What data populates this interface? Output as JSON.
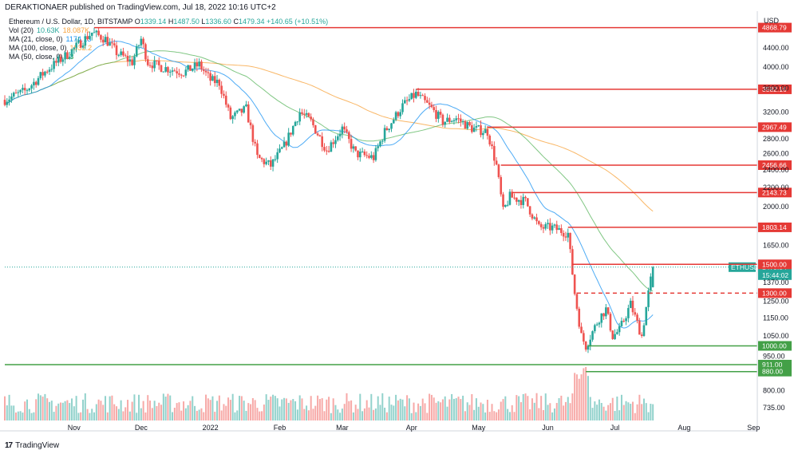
{
  "header": {
    "publisher": "DERAKTIONAER published on TradingView.com, Jul 18, 2022 10:16 UTC+2"
  },
  "legend": {
    "title_line": "Ethereum / U.S. Dollar, 1D, BITSTAMP",
    "ohlc": {
      "o_label": "O",
      "o": "1339.14",
      "h_label": "H",
      "h": "1487.50",
      "l_label": "L",
      "l": "1336.60",
      "c_label": "C",
      "c": "1479.34",
      "change": "+140.65 (+10.51%)"
    },
    "vol": {
      "label": "Vol (20)",
      "v1": "10.63K",
      "v2": "18.087K"
    },
    "ma21": {
      "label": "MA (21, close, 0)",
      "value": "1174.13"
    },
    "ma100": {
      "label": "MA (100, close, 0)",
      "value": "1932.2"
    },
    "ma50": {
      "label": "MA (50, close, 0)",
      "value": "13"
    }
  },
  "footer": {
    "logo_text": "TradingView",
    "logo_mark": "17"
  },
  "colors": {
    "up": "#26a69a",
    "down": "#ef5350",
    "ma21": "#2196f3",
    "ma50": "#4caf50",
    "ma100": "#f7a541",
    "resistance": "#e53935",
    "support": "#43a047",
    "ethusd_label": "#26a69a"
  },
  "chart_data": {
    "type": "candlestick",
    "symbol_label": "ETHUSD",
    "price_axis_unit": "USD",
    "y_scale": "log",
    "ylim": [
      690,
      5200
    ],
    "y_ticks": [
      735,
      800,
      880,
      950,
      1050,
      1150,
      1250,
      1370,
      1500,
      1650,
      1800,
      2000,
      2200,
      2400,
      2600,
      2800,
      3000,
      3200,
      3600,
      4000,
      4400,
      4800
    ],
    "y_tick_labels": [
      "735.00",
      "800.00",
      "",
      "950.00",
      "1050.00",
      "1150.00",
      "1250.00",
      "1370.00",
      "",
      "1650.00",
      "",
      "2000.00",
      "2200.00",
      "2400.00",
      "2600.00",
      "2800.00",
      "",
      "3200.00",
      "3600.00",
      "4000.00",
      "4400.00",
      ""
    ],
    "x_ticks": [
      "Nov",
      "Dec",
      "2022",
      "Feb",
      "Mar",
      "Apr",
      "May",
      "Jun",
      "Jul",
      "Aug",
      "Sep"
    ],
    "x_tick_dates": [
      "2021-11-01",
      "2021-12-01",
      "2022-01-01",
      "2022-02-01",
      "2022-03-01",
      "2022-04-01",
      "2022-05-01",
      "2022-06-01",
      "2022-07-01",
      "2022-08-01",
      "2022-09-01"
    ],
    "x_range": [
      "2021-10-01",
      "2022-09-02"
    ],
    "current": {
      "price": 1479.34,
      "price_label": "1479.34",
      "countdown": "15:44:02",
      "date": "2022-07-18"
    },
    "price_levels": [
      {
        "price": 4868.79,
        "label": "4868.79",
        "kind": "resistance",
        "from": "2021-11-10",
        "style": "solid"
      },
      {
        "price": 3582.16,
        "label": "3582.16",
        "kind": "resistance",
        "from": "2022-04-03",
        "style": "solid"
      },
      {
        "price": 2967.49,
        "label": "2967.49",
        "kind": "resistance",
        "from": "2022-05-05",
        "style": "solid"
      },
      {
        "price": 2456.66,
        "label": "2456.66",
        "kind": "resistance",
        "from": "2022-05-11",
        "style": "solid"
      },
      {
        "price": 2143.73,
        "label": "2143.73",
        "kind": "resistance",
        "from": "2022-05-16",
        "style": "solid"
      },
      {
        "price": 1803.14,
        "label": "1803.14",
        "kind": "resistance",
        "from": "2022-06-10",
        "style": "solid"
      },
      {
        "price": 1500.0,
        "label": "1500.00",
        "kind": "resistance",
        "from": "2022-06-12",
        "style": "solid"
      },
      {
        "price": 1300.0,
        "label": "1300.00",
        "kind": "resistance",
        "from": "2022-06-14",
        "style": "dashed"
      },
      {
        "price": 1000.0,
        "label": "1000.00",
        "kind": "support",
        "from": "2022-06-19",
        "style": "solid"
      },
      {
        "price": 911.0,
        "label": "911.00",
        "kind": "support",
        "from": "2021-10-01",
        "style": "solid"
      },
      {
        "price": 880.0,
        "label": "880.00",
        "kind": "support",
        "from": "2022-06-18",
        "style": "solid"
      }
    ],
    "anchors": [
      [
        "2021-10-01",
        3400
      ],
      [
        "2021-10-10",
        3550
      ],
      [
        "2021-10-20",
        3950
      ],
      [
        "2021-10-30",
        4300
      ],
      [
        "2021-11-09",
        4750
      ],
      [
        "2021-11-15",
        4600
      ],
      [
        "2021-11-20",
        4300
      ],
      [
        "2021-11-27",
        4100
      ],
      [
        "2021-12-01",
        4600
      ],
      [
        "2021-12-04",
        4100
      ],
      [
        "2021-12-10",
        4000
      ],
      [
        "2021-12-20",
        3900
      ],
      [
        "2021-12-27",
        4050
      ],
      [
        "2022-01-01",
        3750
      ],
      [
        "2022-01-05",
        3700
      ],
      [
        "2022-01-10",
        3100
      ],
      [
        "2022-01-17",
        3250
      ],
      [
        "2022-01-22",
        2550
      ],
      [
        "2022-01-28",
        2450
      ],
      [
        "2022-02-03",
        2700
      ],
      [
        "2022-02-10",
        3200
      ],
      [
        "2022-02-15",
        3050
      ],
      [
        "2022-02-22",
        2650
      ],
      [
        "2022-03-01",
        2950
      ],
      [
        "2022-03-07",
        2600
      ],
      [
        "2022-03-15",
        2550
      ],
      [
        "2022-03-20",
        2900
      ],
      [
        "2022-03-28",
        3300
      ],
      [
        "2022-04-03",
        3500
      ],
      [
        "2022-04-10",
        3250
      ],
      [
        "2022-04-15",
        3050
      ],
      [
        "2022-04-21",
        3100
      ],
      [
        "2022-04-28",
        2950
      ],
      [
        "2022-05-05",
        2900
      ],
      [
        "2022-05-09",
        2450
      ],
      [
        "2022-05-12",
        1950
      ],
      [
        "2022-05-15",
        2100
      ],
      [
        "2022-05-22",
        2050
      ],
      [
        "2022-05-28",
        1800
      ],
      [
        "2022-06-03",
        1800
      ],
      [
        "2022-06-10",
        1750
      ],
      [
        "2022-06-13",
        1300
      ],
      [
        "2022-06-16",
        1050
      ],
      [
        "2022-06-18",
        1000
      ],
      [
        "2022-06-24",
        1150
      ],
      [
        "2022-06-27",
        1200
      ],
      [
        "2022-06-30",
        1050
      ],
      [
        "2022-07-03",
        1080
      ],
      [
        "2022-07-08",
        1230
      ],
      [
        "2022-07-13",
        1050
      ],
      [
        "2022-07-16",
        1300
      ],
      [
        "2022-07-18",
        1479
      ]
    ],
    "volume_range": [
      0,
      60
    ]
  }
}
